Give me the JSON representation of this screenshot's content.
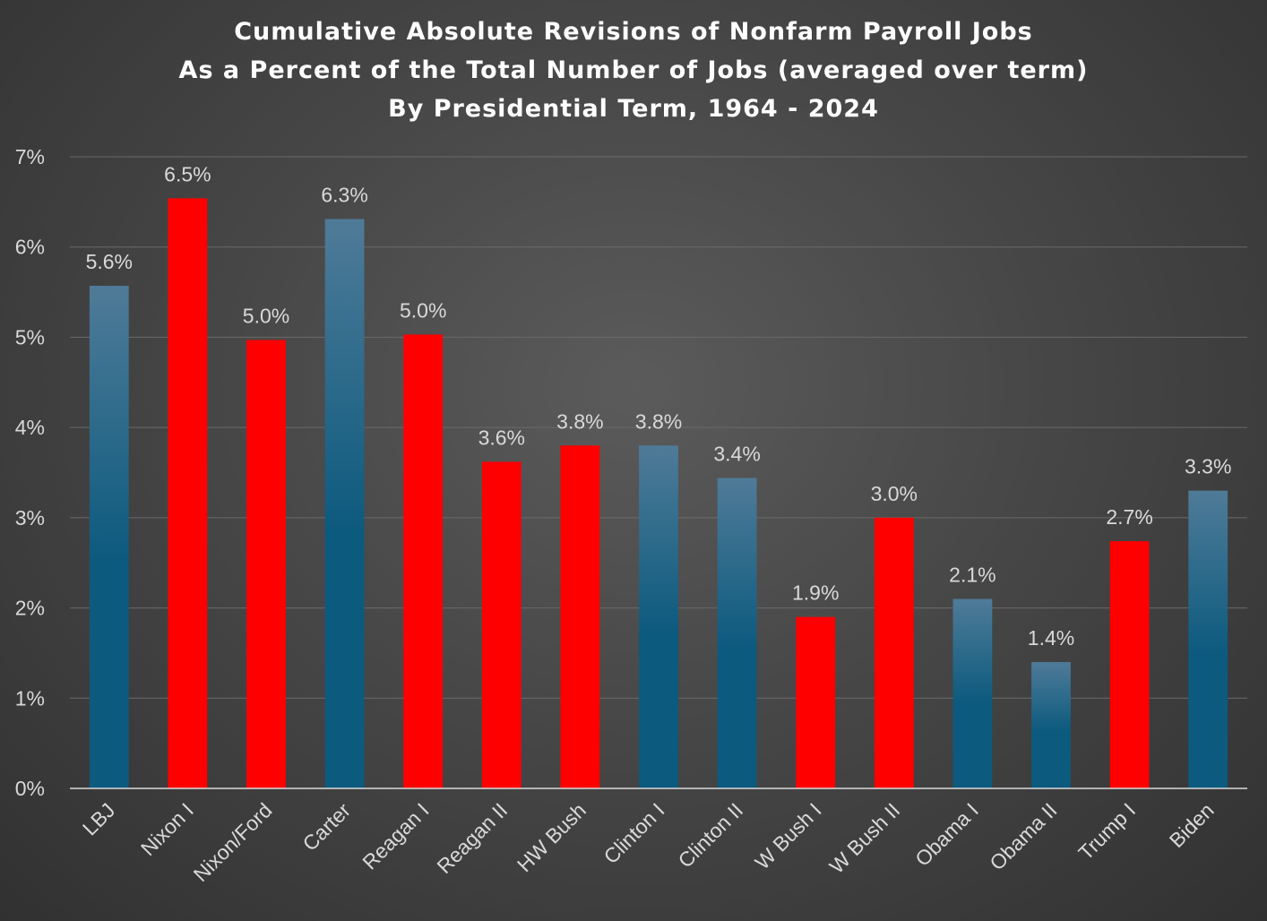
{
  "chart_data": {
    "type": "bar",
    "title": [
      "Cumulative Absolute Revisions of Nonfarm Payroll Jobs",
      "As a Percent of the Total Number of Jobs (averaged over term)",
      "By Presidential Term, 1964 - 2024"
    ],
    "xlabel": "",
    "ylabel": "",
    "ylim": [
      0,
      7
    ],
    "yticks": [
      "0%",
      "1%",
      "2%",
      "3%",
      "4%",
      "5%",
      "6%",
      "7%"
    ],
    "grid": true,
    "legend": "none",
    "categories": [
      "LBJ",
      "Nixon I",
      "Nixon/Ford",
      "Carter",
      "Reagan I",
      "Reagan II",
      "HW Bush",
      "Clinton I",
      "Clinton II",
      "W Bush I",
      "W Bush II",
      "Obama I",
      "Obama II",
      "Trump I",
      "Biden"
    ],
    "values": [
      5.57,
      6.54,
      4.97,
      6.31,
      5.03,
      3.62,
      3.8,
      3.8,
      3.44,
      1.9,
      3.0,
      2.1,
      1.4,
      2.74,
      3.3
    ],
    "data_labels": [
      "5.6%",
      "6.5%",
      "5.0%",
      "6.3%",
      "5.0%",
      "3.6%",
      "3.8%",
      "3.8%",
      "3.4%",
      "1.9%",
      "3.0%",
      "2.1%",
      "1.4%",
      "2.7%",
      "3.3%"
    ],
    "bar_party": [
      "D",
      "R",
      "R",
      "D",
      "R",
      "R",
      "R",
      "D",
      "D",
      "R",
      "R",
      "D",
      "D",
      "R",
      "D"
    ],
    "colors": {
      "D_top": "#4f7b98",
      "D_bottom": "#0c5a7e",
      "R": "#ff0000",
      "text": "#d9d9d9",
      "title": "#ffffff",
      "grid": "#6a6a6a",
      "axis": "#d9d9d9"
    }
  }
}
